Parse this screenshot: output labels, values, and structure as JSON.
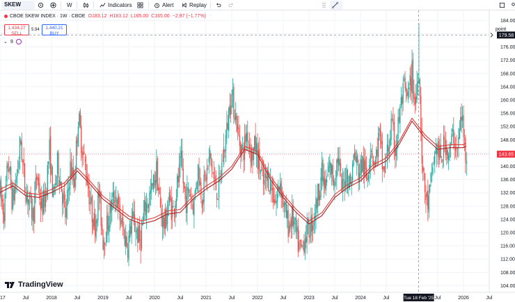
{
  "toolbar": {
    "symbol": "SKEW",
    "interval": "W",
    "indicators_label": "Indicators",
    "alert_label": "Alert",
    "replay_label": "Replay"
  },
  "legend": {
    "title": "CBOE SKEW INDEX · 1W · CBOE",
    "open": "O183.12",
    "high": "H183.12",
    "low": "L165.00",
    "close": "C165.00",
    "change": "−2.97 (−1.77%)"
  },
  "trade": {
    "sell_price": "1,434.27",
    "sell_label": "SELL",
    "spread": "5.94",
    "buy_price": "1,440.21",
    "buy_label": "BUY"
  },
  "indicators_count": "9",
  "price_unit": "point",
  "crosshair": {
    "price_label": "179.58",
    "date_label": "Tue 18 Feb '25"
  },
  "last_price_label": "143.65",
  "logo_text": "TradingView",
  "colors": {
    "up": "#26a69a",
    "down": "#ef5350",
    "ma": "#e53935",
    "last_price": "#f23645",
    "crosshair_label": "#131722"
  },
  "chart_data": {
    "type": "candlestick",
    "title": "CBOE SKEW INDEX · 1W · CBOE",
    "xlabel": "",
    "ylabel": "",
    "ylim": [
      102,
      187
    ],
    "yticks": [
      104,
      108,
      112,
      116,
      120,
      124,
      128,
      132,
      136,
      140,
      144,
      148,
      152,
      156,
      160,
      164,
      168,
      172,
      176,
      180,
      184
    ],
    "x_range": [
      2017.0,
      2026.5
    ],
    "xticks": [
      {
        "t": 2017.0,
        "label": "2017"
      },
      {
        "t": 2017.5,
        "label": "Jul"
      },
      {
        "t": 2018.0,
        "label": "2018"
      },
      {
        "t": 2018.5,
        "label": "Jul"
      },
      {
        "t": 2019.0,
        "label": "2019"
      },
      {
        "t": 2019.5,
        "label": "Jul"
      },
      {
        "t": 2020.0,
        "label": "2020"
      },
      {
        "t": 2020.5,
        "label": "Jul"
      },
      {
        "t": 2021.0,
        "label": "2021"
      },
      {
        "t": 2021.5,
        "label": "Jul"
      },
      {
        "t": 2022.0,
        "label": "2022"
      },
      {
        "t": 2022.5,
        "label": "Jul"
      },
      {
        "t": 2023.0,
        "label": "2023"
      },
      {
        "t": 2023.5,
        "label": "Jul"
      },
      {
        "t": 2024.0,
        "label": "2024"
      },
      {
        "t": 2024.5,
        "label": "Jul"
      },
      {
        "t": 2025.5,
        "label": "Jul"
      },
      {
        "t": 2026.0,
        "label": "2026"
      },
      {
        "t": 2026.5,
        "label": "Jul"
      }
    ],
    "crosshair_price": 179.58,
    "crosshair_time": 2025.13,
    "last_price": 143.65,
    "ma_series": [
      {
        "t": 2017.0,
        "v": 133.0
      },
      {
        "t": 2017.25,
        "v": 135.0
      },
      {
        "t": 2017.5,
        "v": 132.0
      },
      {
        "t": 2017.75,
        "v": 131.5
      },
      {
        "t": 2018.0,
        "v": 133.0
      },
      {
        "t": 2018.25,
        "v": 135.0
      },
      {
        "t": 2018.5,
        "v": 139.5
      },
      {
        "t": 2018.75,
        "v": 135.5
      },
      {
        "t": 2019.0,
        "v": 131.0
      },
      {
        "t": 2019.25,
        "v": 128.0
      },
      {
        "t": 2019.5,
        "v": 125.0
      },
      {
        "t": 2019.75,
        "v": 123.5
      },
      {
        "t": 2020.0,
        "v": 124.5
      },
      {
        "t": 2020.25,
        "v": 126.5
      },
      {
        "t": 2020.5,
        "v": 127.0
      },
      {
        "t": 2020.75,
        "v": 131.0
      },
      {
        "t": 2021.0,
        "v": 134.0
      },
      {
        "t": 2021.25,
        "v": 136.5
      },
      {
        "t": 2021.5,
        "v": 140.0
      },
      {
        "t": 2021.75,
        "v": 146.0
      },
      {
        "t": 2022.0,
        "v": 144.5
      },
      {
        "t": 2022.25,
        "v": 137.0
      },
      {
        "t": 2022.5,
        "v": 131.5
      },
      {
        "t": 2022.75,
        "v": 127.0
      },
      {
        "t": 2023.0,
        "v": 123.5
      },
      {
        "t": 2023.25,
        "v": 126.0
      },
      {
        "t": 2023.5,
        "v": 131.5
      },
      {
        "t": 2023.75,
        "v": 134.5
      },
      {
        "t": 2024.0,
        "v": 136.5
      },
      {
        "t": 2024.25,
        "v": 140.5
      },
      {
        "t": 2024.5,
        "v": 142.5
      },
      {
        "t": 2024.75,
        "v": 147.5
      },
      {
        "t": 2025.0,
        "v": 154.5
      },
      {
        "t": 2025.25,
        "v": 149.5
      },
      {
        "t": 2025.5,
        "v": 146.0
      },
      {
        "t": 2025.75,
        "v": 146.5
      },
      {
        "t": 2026.0,
        "v": 146.5
      },
      {
        "t": 2026.05,
        "v": 147.0
      }
    ],
    "price_path": [
      {
        "t": 2017.0,
        "v": 132
      },
      {
        "t": 2017.08,
        "v": 126
      },
      {
        "t": 2017.16,
        "v": 142
      },
      {
        "t": 2017.24,
        "v": 129
      },
      {
        "t": 2017.32,
        "v": 136
      },
      {
        "t": 2017.4,
        "v": 148
      },
      {
        "t": 2017.48,
        "v": 134
      },
      {
        "t": 2017.56,
        "v": 130
      },
      {
        "t": 2017.64,
        "v": 125
      },
      {
        "t": 2017.72,
        "v": 138
      },
      {
        "t": 2017.8,
        "v": 127
      },
      {
        "t": 2017.88,
        "v": 131
      },
      {
        "t": 2017.96,
        "v": 145
      },
      {
        "t": 2018.04,
        "v": 130
      },
      {
        "t": 2018.12,
        "v": 141
      },
      {
        "t": 2018.2,
        "v": 133
      },
      {
        "t": 2018.28,
        "v": 124
      },
      {
        "t": 2018.36,
        "v": 140
      },
      {
        "t": 2018.44,
        "v": 135
      },
      {
        "t": 2018.52,
        "v": 155
      },
      {
        "t": 2018.6,
        "v": 145
      },
      {
        "t": 2018.68,
        "v": 138
      },
      {
        "t": 2018.76,
        "v": 128
      },
      {
        "t": 2018.84,
        "v": 122
      },
      {
        "t": 2018.92,
        "v": 132
      },
      {
        "t": 2019.0,
        "v": 118
      },
      {
        "t": 2019.08,
        "v": 122
      },
      {
        "t": 2019.16,
        "v": 128
      },
      {
        "t": 2019.24,
        "v": 132
      },
      {
        "t": 2019.32,
        "v": 125
      },
      {
        "t": 2019.4,
        "v": 120
      },
      {
        "t": 2019.48,
        "v": 116
      },
      {
        "t": 2019.56,
        "v": 124
      },
      {
        "t": 2019.64,
        "v": 121
      },
      {
        "t": 2019.72,
        "v": 117
      },
      {
        "t": 2019.8,
        "v": 126
      },
      {
        "t": 2019.88,
        "v": 130
      },
      {
        "t": 2019.96,
        "v": 133
      },
      {
        "t": 2020.04,
        "v": 139
      },
      {
        "t": 2020.12,
        "v": 126
      },
      {
        "t": 2020.2,
        "v": 122
      },
      {
        "t": 2020.28,
        "v": 130
      },
      {
        "t": 2020.36,
        "v": 126
      },
      {
        "t": 2020.44,
        "v": 134
      },
      {
        "t": 2020.52,
        "v": 141
      },
      {
        "t": 2020.6,
        "v": 129
      },
      {
        "t": 2020.68,
        "v": 133
      },
      {
        "t": 2020.76,
        "v": 128
      },
      {
        "t": 2020.84,
        "v": 140
      },
      {
        "t": 2020.92,
        "v": 131
      },
      {
        "t": 2021.0,
        "v": 137
      },
      {
        "t": 2021.08,
        "v": 143
      },
      {
        "t": 2021.16,
        "v": 135
      },
      {
        "t": 2021.24,
        "v": 132
      },
      {
        "t": 2021.32,
        "v": 142
      },
      {
        "t": 2021.4,
        "v": 150
      },
      {
        "t": 2021.48,
        "v": 162
      },
      {
        "t": 2021.56,
        "v": 157
      },
      {
        "t": 2021.64,
        "v": 148
      },
      {
        "t": 2021.72,
        "v": 144
      },
      {
        "t": 2021.8,
        "v": 151
      },
      {
        "t": 2021.88,
        "v": 143
      },
      {
        "t": 2021.96,
        "v": 146
      },
      {
        "t": 2022.04,
        "v": 140
      },
      {
        "t": 2022.12,
        "v": 134
      },
      {
        "t": 2022.2,
        "v": 137
      },
      {
        "t": 2022.28,
        "v": 133
      },
      {
        "t": 2022.36,
        "v": 129
      },
      {
        "t": 2022.44,
        "v": 136
      },
      {
        "t": 2022.52,
        "v": 127
      },
      {
        "t": 2022.6,
        "v": 122
      },
      {
        "t": 2022.68,
        "v": 125
      },
      {
        "t": 2022.76,
        "v": 118
      },
      {
        "t": 2022.84,
        "v": 114
      },
      {
        "t": 2022.92,
        "v": 119
      },
      {
        "t": 2023.0,
        "v": 121
      },
      {
        "t": 2023.08,
        "v": 124
      },
      {
        "t": 2023.16,
        "v": 130
      },
      {
        "t": 2023.24,
        "v": 138
      },
      {
        "t": 2023.32,
        "v": 133
      },
      {
        "t": 2023.4,
        "v": 140
      },
      {
        "t": 2023.48,
        "v": 136
      },
      {
        "t": 2023.56,
        "v": 143
      },
      {
        "t": 2023.64,
        "v": 132
      },
      {
        "t": 2023.72,
        "v": 139
      },
      {
        "t": 2023.8,
        "v": 134
      },
      {
        "t": 2023.88,
        "v": 144
      },
      {
        "t": 2023.96,
        "v": 138
      },
      {
        "t": 2024.04,
        "v": 141
      },
      {
        "t": 2024.12,
        "v": 136
      },
      {
        "t": 2024.2,
        "v": 147
      },
      {
        "t": 2024.28,
        "v": 140
      },
      {
        "t": 2024.36,
        "v": 150
      },
      {
        "t": 2024.44,
        "v": 138
      },
      {
        "t": 2024.52,
        "v": 144
      },
      {
        "t": 2024.6,
        "v": 152
      },
      {
        "t": 2024.68,
        "v": 145
      },
      {
        "t": 2024.76,
        "v": 156
      },
      {
        "t": 2024.84,
        "v": 163
      },
      {
        "t": 2024.92,
        "v": 160
      },
      {
        "t": 2025.0,
        "v": 168
      },
      {
        "t": 2025.06,
        "v": 158
      },
      {
        "t": 2025.13,
        "v": 172
      },
      {
        "t": 2025.2,
        "v": 140
      },
      {
        "t": 2025.26,
        "v": 131
      },
      {
        "t": 2025.32,
        "v": 128
      },
      {
        "t": 2025.4,
        "v": 140
      },
      {
        "t": 2025.48,
        "v": 146
      },
      {
        "t": 2025.56,
        "v": 141
      },
      {
        "t": 2025.64,
        "v": 148
      },
      {
        "t": 2025.72,
        "v": 143
      },
      {
        "t": 2025.8,
        "v": 150
      },
      {
        "t": 2025.88,
        "v": 144
      },
      {
        "t": 2025.96,
        "v": 156
      },
      {
        "t": 2026.02,
        "v": 146
      },
      {
        "t": 2026.06,
        "v": 143.65
      }
    ]
  }
}
